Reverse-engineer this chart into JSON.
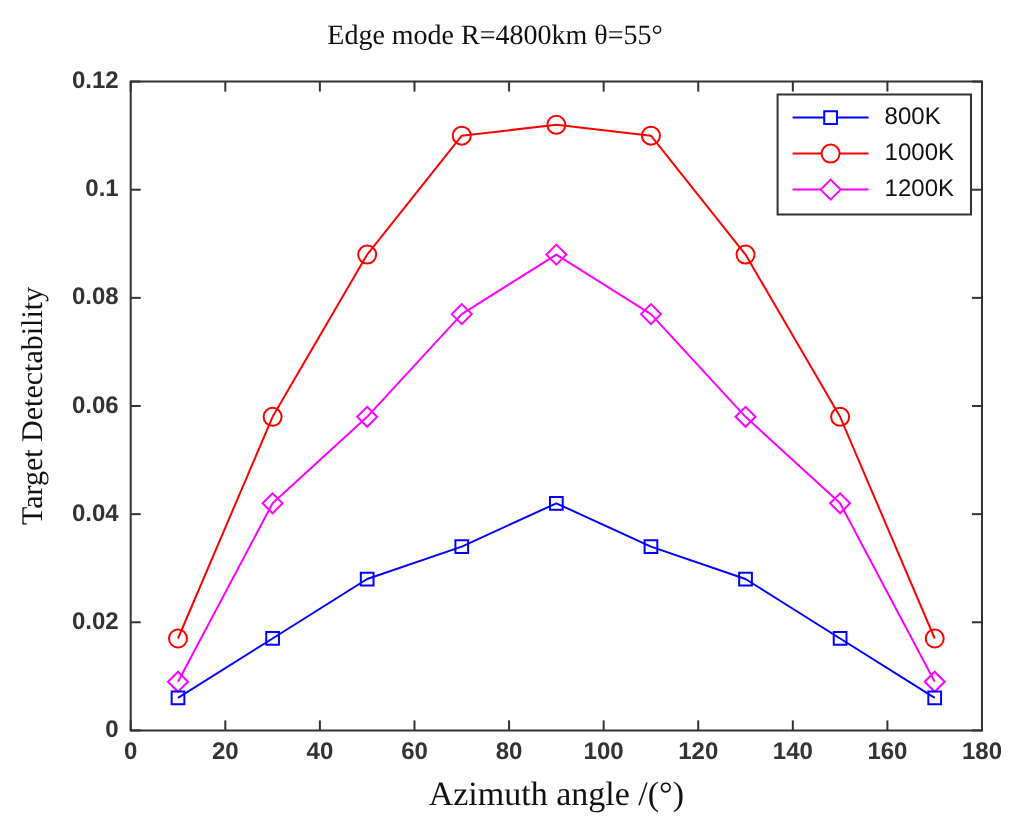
{
  "chart_data": {
    "type": "line",
    "title": "Edge mode R=4800km θ=55°",
    "xlabel": "Azimuth angle /(°)",
    "ylabel": "Target Detectability",
    "x": [
      10,
      30,
      50,
      70,
      90,
      110,
      130,
      150,
      170
    ],
    "series": [
      {
        "name": "800K",
        "color": "#0000ff",
        "marker": "square",
        "values": [
          0.006,
          0.017,
          0.028,
          0.034,
          0.042,
          0.034,
          0.028,
          0.017,
          0.006
        ]
      },
      {
        "name": "1000K",
        "color": "#ff0000",
        "marker": "circle",
        "values": [
          0.017,
          0.058,
          0.088,
          0.11,
          0.112,
          0.11,
          0.088,
          0.058,
          0.017
        ]
      },
      {
        "name": "1200K",
        "color": "#ff00ff",
        "marker": "diamond",
        "values": [
          0.009,
          0.042,
          0.058,
          0.077,
          0.088,
          0.077,
          0.058,
          0.042,
          0.009
        ]
      }
    ],
    "xlim": [
      0,
      180
    ],
    "xticks": [
      0,
      20,
      40,
      60,
      80,
      100,
      120,
      140,
      160,
      180
    ],
    "ylim": [
      0,
      0.12
    ],
    "yticks": [
      0,
      0.02,
      0.04,
      0.06,
      0.08,
      0.1,
      0.12
    ],
    "grid": false,
    "legend": "top right",
    "line_style": "solid"
  }
}
